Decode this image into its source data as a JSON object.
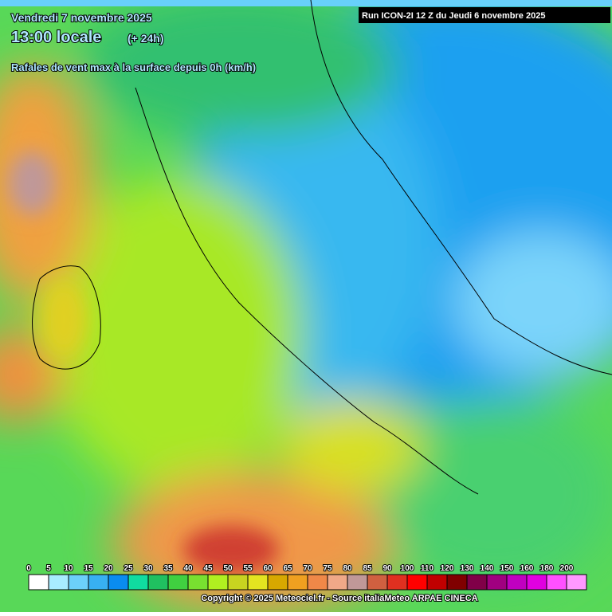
{
  "header": {
    "date": "Vendredi 7 novembre 2025",
    "time": "13:00 locale",
    "offset": "(+ 24h)",
    "subtitle": "Rafales de vent max à la surface depuis 0h (km/h)",
    "run": "Run ICON-2I 12 Z du Jeudi 6 novembre 2025"
  },
  "legend": {
    "labels": [
      "0",
      "5",
      "10",
      "15",
      "20",
      "25",
      "30",
      "35",
      "40",
      "45",
      "50",
      "55",
      "60",
      "65",
      "70",
      "75",
      "80",
      "85",
      "90",
      "100",
      "110",
      "120",
      "130",
      "140",
      "150",
      "160",
      "180",
      "200"
    ],
    "colors": [
      "#ffffff",
      "#a8ecff",
      "#6cd0fa",
      "#38b0f2",
      "#0a8cf0",
      "#10dca0",
      "#20c060",
      "#40d040",
      "#78e030",
      "#b0f020",
      "#c8d420",
      "#e4e420",
      "#d8a800",
      "#f0a020",
      "#f08848",
      "#f0a888",
      "#c09898",
      "#d06040",
      "#e03020",
      "#ff0000",
      "#c00000",
      "#800000",
      "#800048",
      "#a00080",
      "#c000c0",
      "#e000e0",
      "#ff50ff",
      "#ff98ff"
    ]
  },
  "footer": {
    "copyright": "Copyright © 2025 Meteociel.fr - Source italiaMeteo ARPAE CINECA"
  }
}
